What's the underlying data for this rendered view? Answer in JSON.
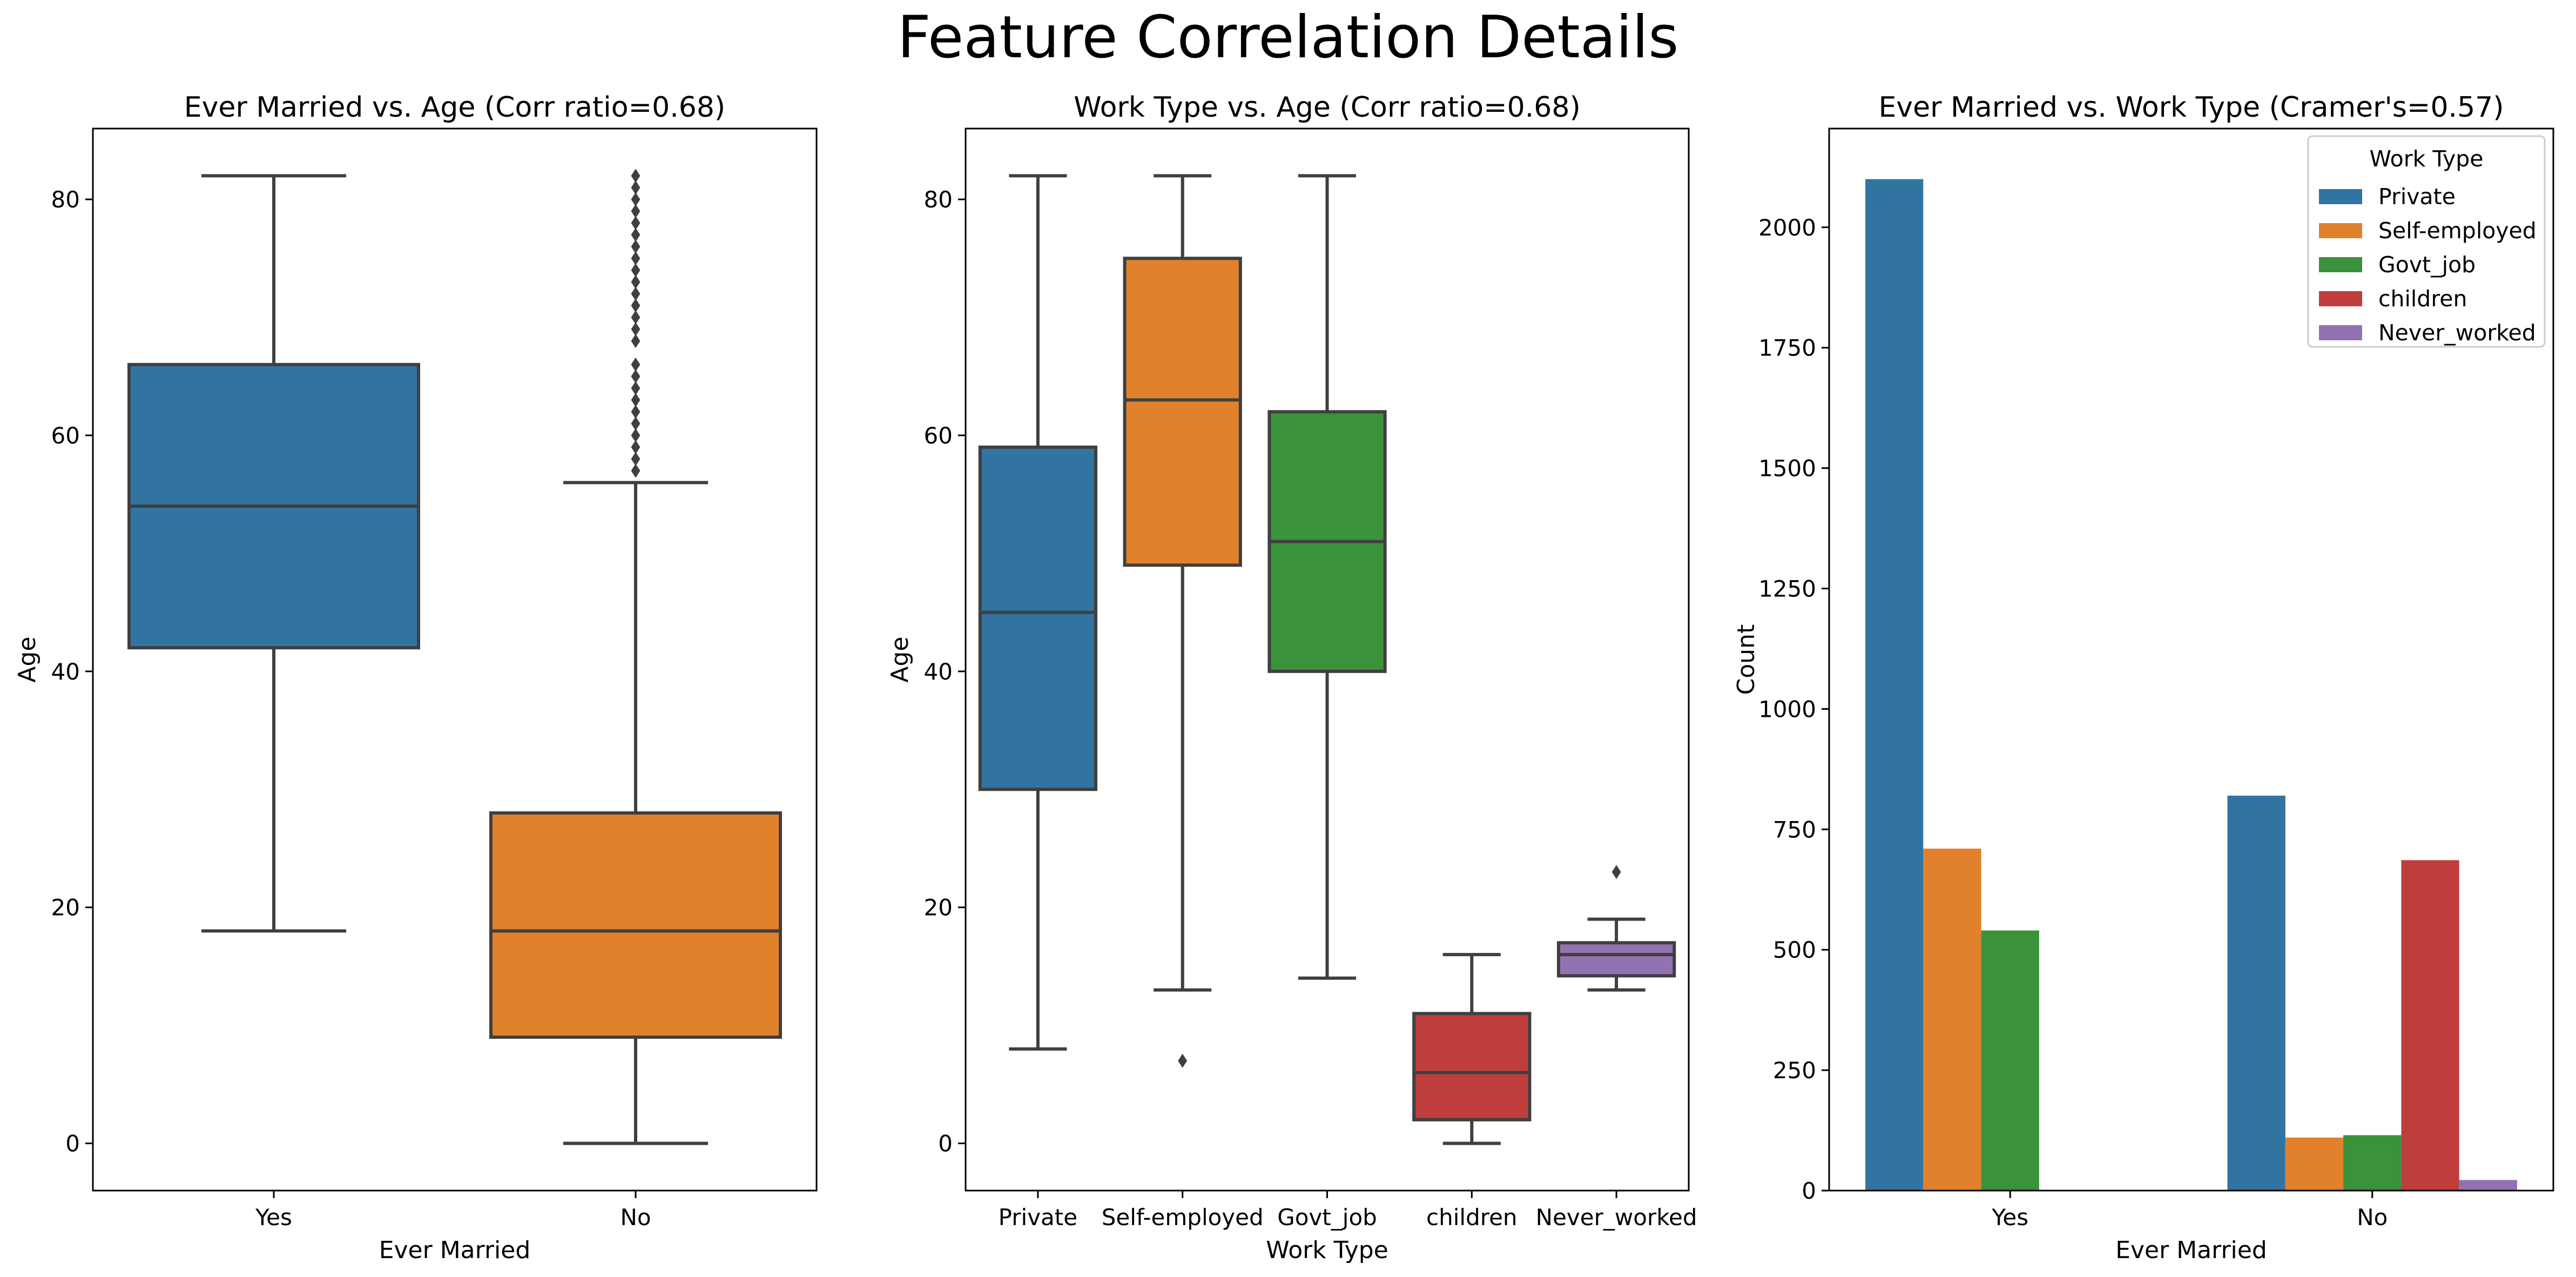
{
  "figure_title": "Feature Correlation Details",
  "chart_data": [
    {
      "type": "box",
      "title": "Ever Married vs. Age (Corr ratio=0.68)",
      "xlabel": "Ever Married",
      "ylabel": "Age",
      "ylim": [
        -4,
        86
      ],
      "yticks": [
        0,
        20,
        40,
        60,
        80
      ],
      "categories": [
        "Yes",
        "No"
      ],
      "colors": [
        "#3274a1",
        "#e1812c"
      ],
      "boxes": [
        {
          "category": "Yes",
          "whisker_low": 18,
          "q1": 42,
          "median": 54,
          "q3": 66,
          "whisker_high": 82,
          "outliers": []
        },
        {
          "category": "No",
          "whisker_low": 0,
          "q1": 9,
          "median": 18,
          "q3": 28,
          "whisker_high": 56,
          "outliers": [
            57,
            58,
            59,
            60,
            61,
            62,
            63,
            64,
            65,
            66,
            68,
            69,
            70,
            71,
            72,
            73,
            74,
            75,
            76,
            77,
            78,
            79,
            80,
            81,
            82
          ]
        }
      ]
    },
    {
      "type": "box",
      "title": "Work Type vs. Age (Corr ratio=0.68)",
      "xlabel": "Work Type",
      "ylabel": "Age",
      "ylim": [
        -4,
        86
      ],
      "yticks": [
        0,
        20,
        40,
        60,
        80
      ],
      "categories": [
        "Private",
        "Self-employed",
        "Govt_job",
        "children",
        "Never_worked"
      ],
      "colors": [
        "#3274a1",
        "#e1812c",
        "#3a923a",
        "#c03d3e",
        "#9372b2"
      ],
      "boxes": [
        {
          "category": "Private",
          "whisker_low": 8,
          "q1": 30,
          "median": 45,
          "q3": 59,
          "whisker_high": 82,
          "outliers": []
        },
        {
          "category": "Self-employed",
          "whisker_low": 13,
          "q1": 49,
          "median": 63,
          "q3": 75,
          "whisker_high": 82,
          "outliers": [
            7
          ]
        },
        {
          "category": "Govt_job",
          "whisker_low": 14,
          "q1": 40,
          "median": 51,
          "q3": 62,
          "whisker_high": 82,
          "outliers": []
        },
        {
          "category": "children",
          "whisker_low": 0,
          "q1": 2,
          "median": 6,
          "q3": 11,
          "whisker_high": 16,
          "outliers": []
        },
        {
          "category": "Never_worked",
          "whisker_low": 13,
          "q1": 14.2,
          "median": 16,
          "q3": 17,
          "whisker_high": 19,
          "outliers": [
            23
          ]
        }
      ]
    },
    {
      "type": "bar",
      "title": "Ever Married vs. Work Type (Cramer's=0.57)",
      "xlabel": "Ever Married",
      "ylabel": "Count",
      "ylim": [
        0,
        2205
      ],
      "yticks": [
        0,
        250,
        500,
        750,
        1000,
        1250,
        1500,
        1750,
        2000
      ],
      "categories": [
        "Yes",
        "No"
      ],
      "legend_title": "Work Type",
      "legend_position": "top-right",
      "series": [
        {
          "name": "Private",
          "color": "#3274a1",
          "values": [
            2100,
            820
          ]
        },
        {
          "name": "Self-employed",
          "color": "#e1812c",
          "values": [
            710,
            110
          ]
        },
        {
          "name": "Govt_job",
          "color": "#3a923a",
          "values": [
            540,
            115
          ]
        },
        {
          "name": "children",
          "color": "#c03d3e",
          "values": [
            0,
            686
          ]
        },
        {
          "name": "Never_worked",
          "color": "#9372b2",
          "values": [
            0,
            22
          ]
        }
      ]
    }
  ]
}
